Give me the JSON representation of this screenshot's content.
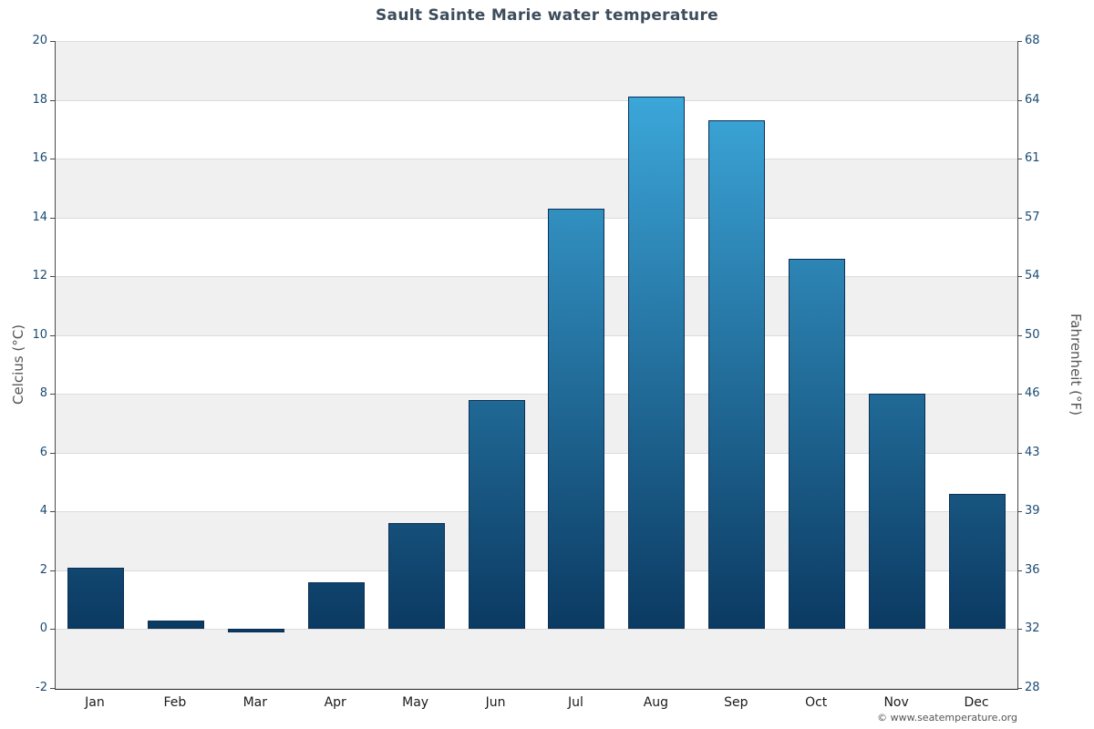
{
  "copyright": "© www.seatemperature.org",
  "chart_data": {
    "type": "bar",
    "title": "Sault Sainte Marie water temperature",
    "categories": [
      "Jan",
      "Feb",
      "Mar",
      "Apr",
      "May",
      "Jun",
      "Jul",
      "Aug",
      "Sep",
      "Oct",
      "Nov",
      "Dec"
    ],
    "values": [
      2.1,
      0.3,
      -0.1,
      1.6,
      3.6,
      7.8,
      14.3,
      18.1,
      17.3,
      12.6,
      8.0,
      4.6
    ],
    "ylabel_left": "Celcius (°C)",
    "ylabel_right": "Fahrenheit (°F)",
    "ylim_c": [
      -2,
      20
    ],
    "yticks_c": [
      20,
      18,
      16,
      14,
      12,
      10,
      8,
      6,
      4,
      2,
      0,
      -2
    ],
    "yticks_f": [
      "68",
      "64",
      "61",
      "57",
      "54",
      "50",
      "46",
      "43",
      "39",
      "36",
      "32",
      "28"
    ],
    "grid": true,
    "legend": "none",
    "bar_color_top": "#41b2e6",
    "bar_color_bottom": "#0b3a62",
    "bar_border_color": "#0a3056"
  }
}
